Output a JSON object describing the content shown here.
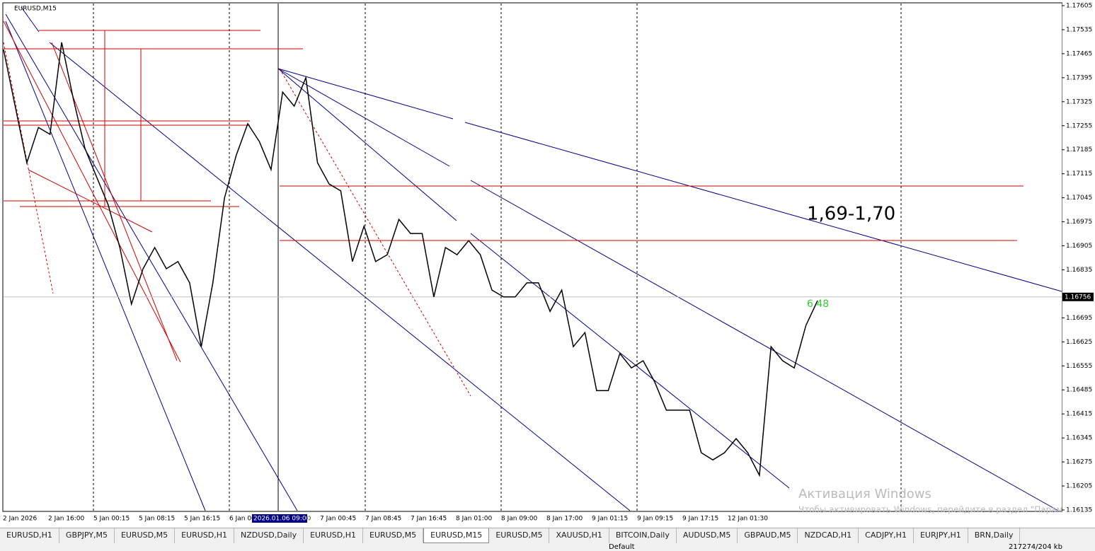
{
  "symbol": "EURUSD,M15",
  "chart_data": {
    "type": "line",
    "series": [
      {
        "color": "#000000",
        "values": [
          1.17477,
          1.17312,
          1.17147,
          1.1725,
          1.1723,
          1.17498,
          1.17333,
          1.17189,
          1.17106,
          1.17024,
          1.169,
          1.16735,
          1.16838,
          1.169,
          1.16838,
          1.16859,
          1.16797,
          1.16611,
          1.16797,
          1.17044,
          1.17168,
          1.17261,
          1.17209,
          1.17127,
          1.17353,
          1.17312,
          1.17395,
          1.17147,
          1.17085,
          1.17065,
          1.16859,
          1.16962,
          1.16859,
          1.16879,
          1.16982,
          1.16941,
          1.16941,
          1.16756,
          1.169,
          1.16879,
          1.1692,
          1.16879,
          1.16776,
          1.16756,
          1.16756,
          1.16797,
          1.16797,
          1.16714,
          1.16776,
          1.16611,
          1.16652,
          1.16483,
          1.16483,
          1.16591,
          1.16549,
          1.1657,
          1.16508,
          1.16426,
          1.16426,
          1.16426,
          1.16302,
          1.16281,
          1.16302,
          1.16343,
          1.16302,
          1.16236,
          1.16611,
          1.1657,
          1.16549,
          1.16673,
          1.16745
        ]
      }
    ],
    "ylim": [
      1.16135,
      1.17605
    ],
    "yticks": [
      1.17605,
      1.17535,
      1.17465,
      1.17395,
      1.17325,
      1.17255,
      1.17185,
      1.17115,
      1.17045,
      1.16975,
      1.16905,
      1.16835,
      1.16695,
      1.16625,
      1.16555,
      1.16485,
      1.16415,
      1.16345,
      1.16275,
      1.16205,
      1.16135
    ],
    "current_price": 1.16756,
    "x_labels": [
      "2 Jan 2026",
      "2 Jan 16:00",
      "5 Jan 00:15",
      "5 Jan 08:15",
      "5 Jan 16:15",
      "6 Jan 00:30",
      "6 Jan 16:30",
      "7 Jan 00:45",
      "7 Jan 08:45",
      "7 Jan 16:45",
      "8 Jan 01:00",
      "8 Jan 09:00",
      "8 Jan 17:00",
      "9 Jan 01:15",
      "9 Jan 09:15",
      "9 Jan 17:15",
      "12 Jan 01:30"
    ],
    "crosshair_time": "2026.01.06 09:00",
    "annotations": [
      "1,69-1,70",
      "6 48"
    ]
  },
  "tabs": [
    "EURUSD,H1",
    "GBPJPY,M5",
    "EURUSD,M5",
    "EURUSD,H1",
    "NZDUSD,Daily",
    "EURUSD,H1",
    "EURUSD,M5",
    "EURUSD,M15",
    "EURUSD,M5",
    "XAUUSD,H1",
    "BITCOIN,Daily",
    "AUDUSD,M5",
    "GBPAUD,M5",
    "NZDCAD,H1",
    "CADJPY,H1",
    "EURJPY,H1",
    "BRN,Daily"
  ],
  "active_tab": "EURUSD,M15",
  "status": {
    "profile": "Default",
    "traffic": "217274/204 kb"
  },
  "watermark": {
    "title": "Активация Windows",
    "text": "Чтобы активировать Windows, перейдите в раздел \"Параметры\"."
  }
}
